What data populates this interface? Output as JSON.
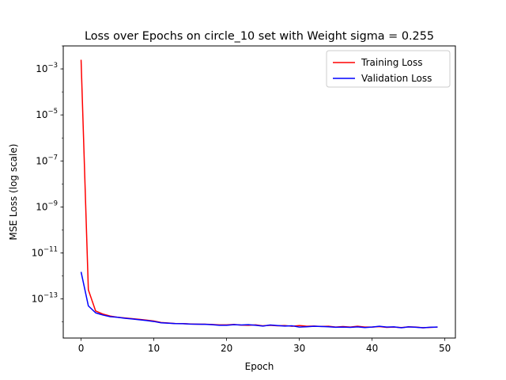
{
  "chart_data": {
    "type": "line",
    "title": "Loss over Epochs on circle_10 set with Weight sigma = 0.255",
    "xlabel": "Epoch",
    "ylabel": "MSE Loss (log scale)",
    "yscale": "log",
    "xlim": [
      -2.45,
      51.45
    ],
    "ylim": [
      2e-15,
      0.01
    ],
    "grid": false,
    "legend_position": "upper right",
    "x_ticks": [
      0,
      10,
      20,
      30,
      40,
      50
    ],
    "x_tick_labels": [
      "0",
      "10",
      "20",
      "30",
      "40",
      "50"
    ],
    "y_ticks": [
      1e-13,
      1e-11,
      1e-09,
      1e-07,
      1e-05,
      0.001
    ],
    "y_tick_labels": [
      {
        "base": "10",
        "exp": "−13"
      },
      {
        "base": "10",
        "exp": "−11"
      },
      {
        "base": "10",
        "exp": "−9"
      },
      {
        "base": "10",
        "exp": "−7"
      },
      {
        "base": "10",
        "exp": "−5"
      },
      {
        "base": "10",
        "exp": "−3"
      }
    ],
    "x": [
      0,
      1,
      2,
      3,
      4,
      5,
      6,
      7,
      8,
      9,
      10,
      11,
      12,
      13,
      14,
      15,
      16,
      17,
      18,
      19,
      20,
      21,
      22,
      23,
      24,
      25,
      26,
      27,
      28,
      29,
      30,
      31,
      32,
      33,
      34,
      35,
      36,
      37,
      38,
      39,
      40,
      41,
      42,
      43,
      44,
      45,
      46,
      47,
      48,
      49
    ],
    "series": [
      {
        "name": "Training Loss",
        "color": "#ff0000",
        "values": [
          0.0025,
          2.5e-13,
          3e-14,
          2.2e-14,
          1.8e-14,
          1.6e-14,
          1.5e-14,
          1.4e-14,
          1.3e-14,
          1.2e-14,
          1.1e-14,
          9.5e-15,
          9e-15,
          8.5e-15,
          8.5e-15,
          8.2e-15,
          8e-15,
          8e-15,
          7.8e-15,
          7.5e-15,
          7.5e-15,
          7.8e-15,
          7.3e-15,
          7.2e-15,
          7.5e-15,
          6.8e-15,
          7.2e-15,
          6.8e-15,
          7e-15,
          6.5e-15,
          7e-15,
          6.5e-15,
          6.6e-15,
          6.4e-15,
          6.5e-15,
          6e-15,
          6.3e-15,
          6e-15,
          6.5e-15,
          6e-15,
          6e-15,
          6.3e-15,
          5.8e-15,
          6e-15,
          5.7e-15,
          6.1e-15,
          6e-15,
          5.6e-15,
          5.8e-15,
          6e-15
        ]
      },
      {
        "name": "Validation Loss",
        "color": "#0000ff",
        "values": [
          1.5e-12,
          5e-14,
          2.5e-14,
          2e-14,
          1.7e-14,
          1.6e-14,
          1.45e-14,
          1.35e-14,
          1.25e-14,
          1.15e-14,
          1.05e-14,
          9.2e-15,
          8.8e-15,
          8.5e-15,
          8.4e-15,
          8.1e-15,
          8e-15,
          7.9e-15,
          7.6e-15,
          7.2e-15,
          7.2e-15,
          7.6e-15,
          7.4e-15,
          7.6e-15,
          7.2e-15,
          6.6e-15,
          7.4e-15,
          7e-15,
          6.6e-15,
          6.8e-15,
          6e-15,
          6.2e-15,
          6.5e-15,
          6.4e-15,
          6.2e-15,
          5.9e-15,
          6e-15,
          5.8e-15,
          6.1e-15,
          5.7e-15,
          6e-15,
          6.5e-15,
          6e-15,
          6.1e-15,
          5.6e-15,
          6.1e-15,
          5.9e-15,
          5.6e-15,
          5.9e-15,
          6e-15
        ]
      }
    ]
  }
}
